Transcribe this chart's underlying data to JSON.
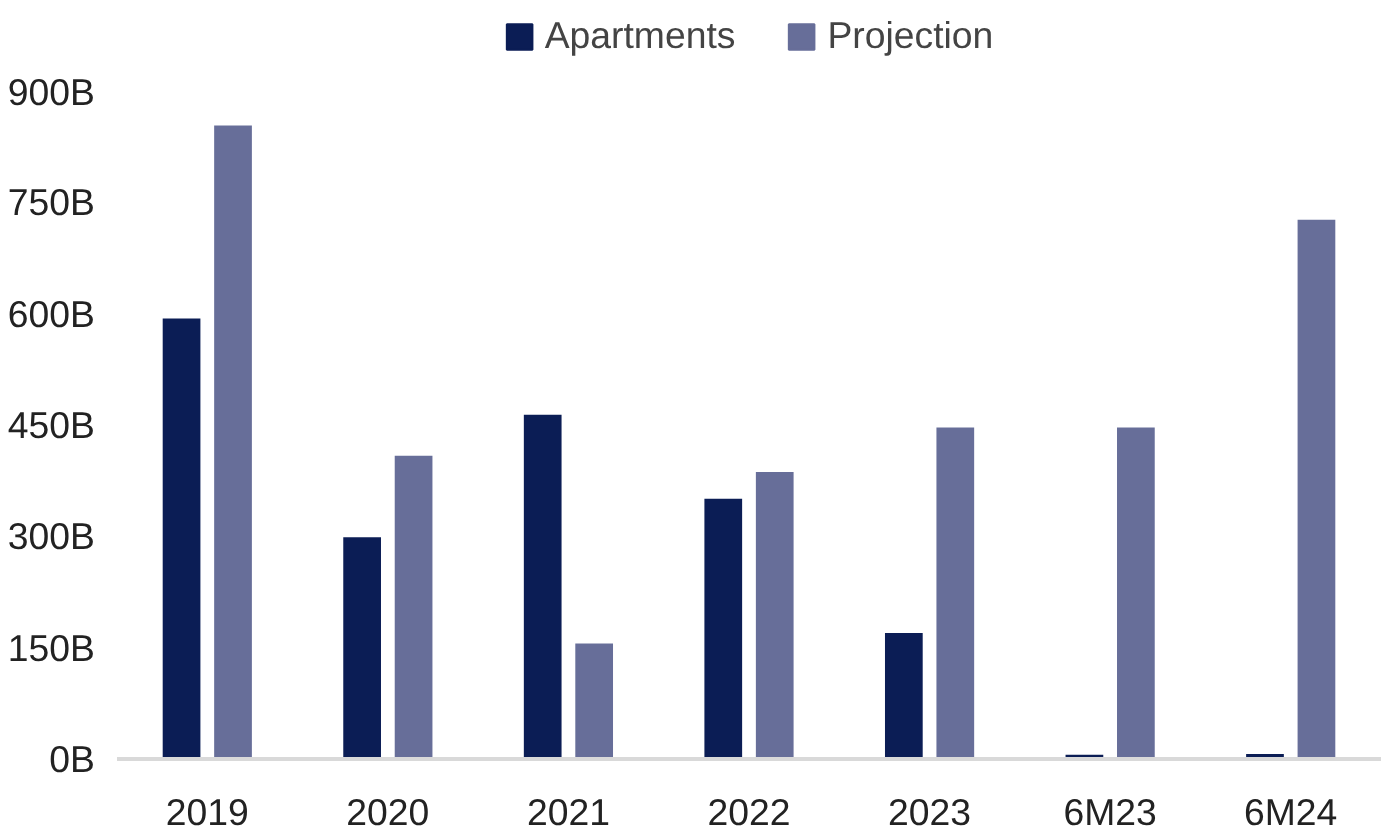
{
  "chart_data": {
    "type": "bar",
    "categories": [
      "2019",
      "2020",
      "2021",
      "2022",
      "2023",
      "6M23",
      "6M24"
    ],
    "series": [
      {
        "name": "Apartments",
        "color": "#0b1d55",
        "values": [
          595,
          300,
          465,
          352,
          171,
          7,
          8
        ]
      },
      {
        "name": "Projection",
        "color": "#676e99",
        "values": [
          855,
          410,
          157,
          388,
          448,
          448,
          728
        ]
      }
    ],
    "ylim": [
      0,
      900
    ],
    "yticks": [
      {
        "value": 0,
        "label": "0B"
      },
      {
        "value": 150,
        "label": "150B"
      },
      {
        "value": 300,
        "label": "300B"
      },
      {
        "value": 450,
        "label": "450B"
      },
      {
        "value": 600,
        "label": "600B"
      },
      {
        "value": 750,
        "label": "750B"
      },
      {
        "value": 900,
        "label": "900B"
      }
    ],
    "grid": false,
    "legend": "top"
  }
}
